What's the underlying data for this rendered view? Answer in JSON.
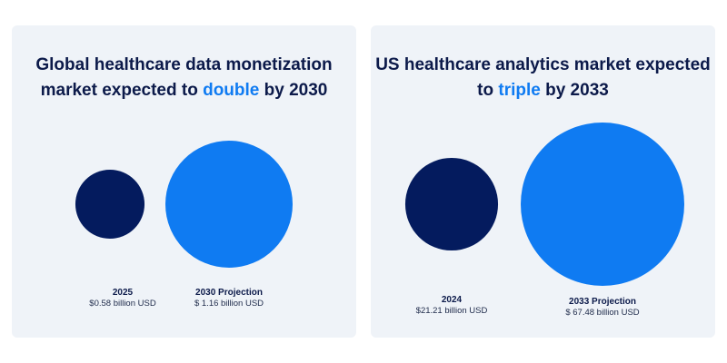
{
  "colors": {
    "background": "#ffffff",
    "panel": "#eff3f8",
    "title": "#0c1a4a",
    "highlight": "#0f7bf2",
    "dark_bubble": "#041b5e",
    "bright_bubble": "#0f7bf2"
  },
  "chart_data": [
    {
      "type": "bubble",
      "title_pre": "Global healthcare data monetization market expected to ",
      "title_highlight": "double",
      "title_post": " by 2030",
      "series": [
        {
          "category": "2025",
          "label": "$0.58 billion USD",
          "value": 0.58,
          "color": "#041b5e"
        },
        {
          "category": "2030 Projection",
          "label": "$ 1.16 billion USD",
          "value": 1.16,
          "color": "#0f7bf2"
        }
      ],
      "unit": "billion USD"
    },
    {
      "type": "bubble",
      "title_pre": "US healthcare analytics market expected to ",
      "title_highlight": "triple",
      "title_post": " by 2033",
      "series": [
        {
          "category": "2024",
          "label": "$21.21 billion USD",
          "value": 21.21,
          "color": "#041b5e"
        },
        {
          "category": "2033 Projection",
          "label": "$ 67.48 billion USD",
          "value": 67.48,
          "color": "#0f7bf2"
        }
      ],
      "unit": "billion USD"
    }
  ]
}
